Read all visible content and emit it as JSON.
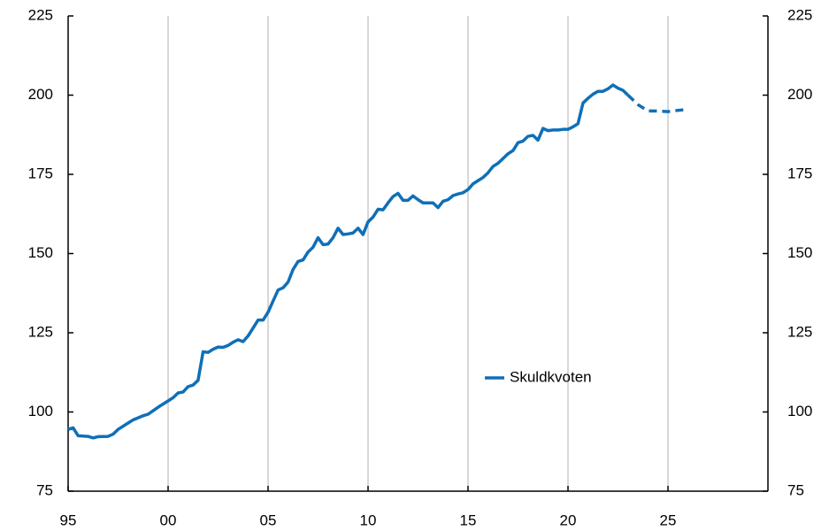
{
  "chart_data": {
    "type": "line",
    "x": [
      1995.0,
      1995.25,
      1995.5,
      1996.0,
      1996.25,
      1996.5,
      1997.0,
      1997.25,
      1997.5,
      1998.0,
      1998.25,
      1998.75,
      1999.0,
      1999.5,
      2000.0,
      2000.25,
      2000.5,
      2000.75,
      2001.0,
      2001.25,
      2001.5,
      2001.75,
      2002.0,
      2002.25,
      2002.5,
      2002.75,
      2003.0,
      2003.25,
      2003.5,
      2003.75,
      2004.0,
      2004.25,
      2004.5,
      2004.75,
      2005.0,
      2005.25,
      2005.5,
      2005.75,
      2006.0,
      2006.25,
      2006.5,
      2006.75,
      2007.0,
      2007.25,
      2007.5,
      2007.75,
      2008.0,
      2008.25,
      2008.5,
      2008.75,
      2009.0,
      2009.25,
      2009.5,
      2009.75,
      2010.0,
      2010.25,
      2010.5,
      2010.75,
      2011.0,
      2011.25,
      2011.5,
      2011.75,
      2012.0,
      2012.25,
      2012.5,
      2012.75,
      2013.0,
      2013.25,
      2013.5,
      2013.75,
      2014.0,
      2014.25,
      2014.5,
      2014.75,
      2015.0,
      2015.25,
      2015.5,
      2015.75,
      2016.0,
      2016.25,
      2016.5,
      2016.75,
      2017.0,
      2017.25,
      2017.5,
      2017.75,
      2018.0,
      2018.25,
      2018.5,
      2018.75,
      2019.0,
      2019.25,
      2019.5,
      2019.75,
      2020.0,
      2020.25,
      2020.5,
      2020.75,
      2021.0,
      2021.25,
      2021.5,
      2021.75,
      2022.0,
      2022.25,
      2022.5,
      2022.75,
      2023.0,
      2023.5,
      2023.75,
      2024.0,
      2024.5,
      2025.0,
      2025.5,
      2026.0
    ],
    "series": [
      {
        "name": "Skuldkvoten",
        "color": "#0f6fb8",
        "dashed_from": 2023.0,
        "values": [
          94.5,
          95,
          92.5,
          92.3,
          91.8,
          92.2,
          92.3,
          93,
          94.5,
          96.5,
          97.5,
          98.8,
          99.3,
          101.5,
          103.5,
          104.5,
          106,
          106.3,
          108,
          108.5,
          110,
          119,
          118.8,
          119.8,
          120.5,
          120.4,
          121,
          122,
          122.8,
          122.2,
          124,
          126.5,
          129,
          129,
          131.5,
          135,
          138.5,
          139.2,
          141,
          145,
          147.5,
          148,
          150.5,
          152,
          155,
          152.8,
          153,
          155,
          158,
          156,
          156.2,
          156.5,
          158,
          156,
          160,
          161.5,
          164,
          163.8,
          166,
          168,
          169,
          166.8,
          166.8,
          168.2,
          167,
          166,
          166,
          166,
          164.5,
          166.5,
          167,
          168.3,
          168.8,
          169.2,
          170.2,
          172,
          173,
          174,
          175.5,
          177.5,
          178.5,
          180,
          181.5,
          182.5,
          185,
          185.5,
          187,
          187.3,
          185.8,
          189.5,
          188.8,
          189,
          189,
          189.2,
          189.2,
          190,
          191,
          197.5,
          199,
          200.3,
          201.2,
          201.2,
          202,
          203.2,
          202.2,
          201.5,
          200,
          197,
          196,
          195,
          195,
          194.8,
          195.2,
          195.5
        ]
      }
    ],
    "xlim": [
      1995,
      2030
    ],
    "xticks": [
      {
        "value": 1995,
        "label": "95"
      },
      {
        "value": 2000,
        "label": "00"
      },
      {
        "value": 2005,
        "label": "05"
      },
      {
        "value": 2010,
        "label": "10"
      },
      {
        "value": 2015,
        "label": "15"
      },
      {
        "value": 2020,
        "label": "20"
      },
      {
        "value": 2025,
        "label": "25"
      }
    ],
    "ylim": [
      75,
      225
    ],
    "yticks": [
      75,
      100,
      125,
      150,
      175,
      200,
      225
    ],
    "y2lim": [
      75,
      225
    ],
    "y2ticks": [
      75,
      100,
      125,
      150,
      175,
      200,
      225
    ],
    "grid": true
  }
}
